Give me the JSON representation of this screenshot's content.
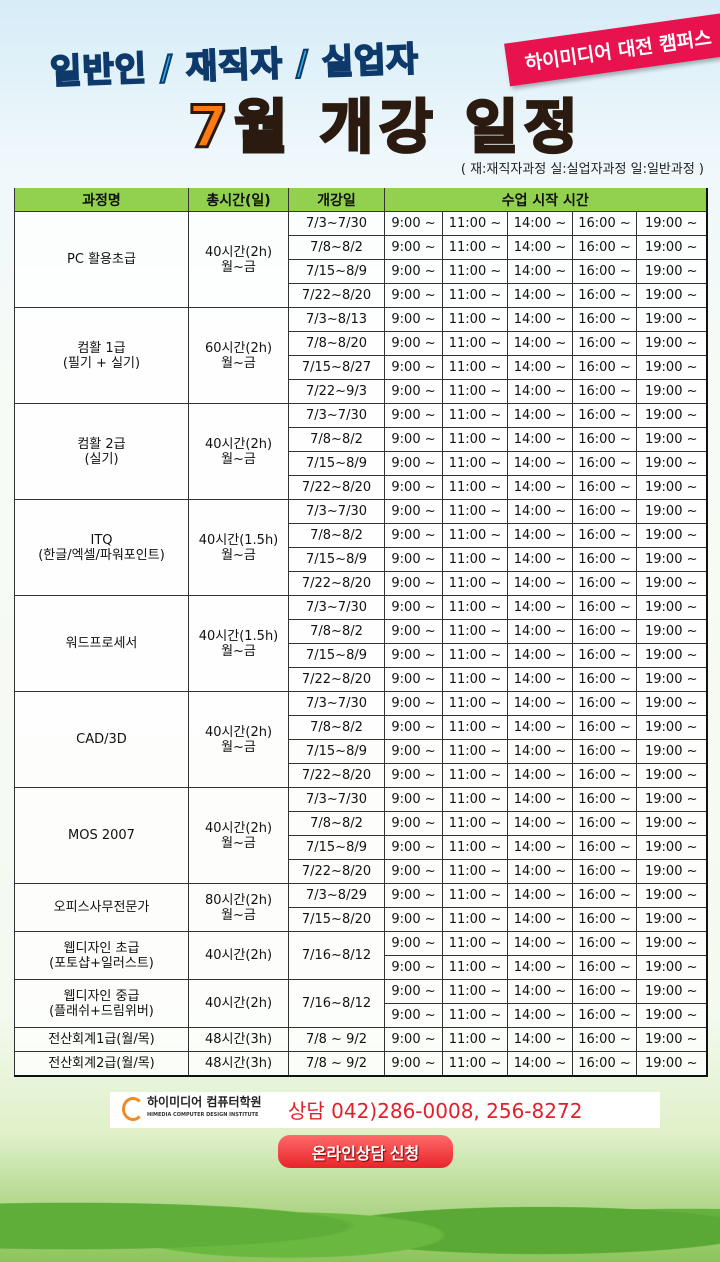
{
  "header": {
    "subtitle": "일반인 / 재직자 / 실업자",
    "title": "7월 개강 일정",
    "ribbon": "하이미디어 대전 캠퍼스",
    "legend": "( 재:재직자과정  실:실업자과정  일:일반과정 )"
  },
  "table": {
    "headers": [
      "과정명",
      "총시간(일)",
      "개강일",
      "수업 시작 시간"
    ],
    "times": [
      "9:00 ~",
      "11:00 ~",
      "14:00 ~",
      "16:00 ~",
      "19:00 ~"
    ],
    "courses": [
      {
        "name": [
          "PC 활용초급"
        ],
        "hours": [
          "40시간(2h)",
          "월~금"
        ],
        "sessions": [
          {
            "date": "7/3~7/30",
            "rows": 1
          },
          {
            "date": "7/8~8/2",
            "rows": 1
          },
          {
            "date": "7/15~8/9",
            "rows": 1
          },
          {
            "date": "7/22~8/20",
            "rows": 1
          }
        ]
      },
      {
        "name": [
          "컴활 1급",
          "(필기 + 실기)"
        ],
        "hours": [
          "60시간(2h)",
          "월~금"
        ],
        "sessions": [
          {
            "date": "7/3~8/13",
            "rows": 1
          },
          {
            "date": "7/8~8/20",
            "rows": 1
          },
          {
            "date": "7/15~8/27",
            "rows": 1
          },
          {
            "date": "7/22~9/3",
            "rows": 1
          }
        ]
      },
      {
        "name": [
          "컴활 2급",
          "(실기)"
        ],
        "hours": [
          "40시간(2h)",
          "월~금"
        ],
        "sessions": [
          {
            "date": "7/3~7/30",
            "rows": 1
          },
          {
            "date": "7/8~8/2",
            "rows": 1
          },
          {
            "date": "7/15~8/9",
            "rows": 1
          },
          {
            "date": "7/22~8/20",
            "rows": 1
          }
        ]
      },
      {
        "name": [
          "ITQ",
          "(한글/엑셀/파워포인트)"
        ],
        "hours": [
          "40시간(1.5h)",
          "월~금"
        ],
        "sessions": [
          {
            "date": "7/3~7/30",
            "rows": 1
          },
          {
            "date": "7/8~8/2",
            "rows": 1
          },
          {
            "date": "7/15~8/9",
            "rows": 1
          },
          {
            "date": "7/22~8/20",
            "rows": 1
          }
        ]
      },
      {
        "name": [
          "워드프로세서"
        ],
        "hours": [
          "40시간(1.5h)",
          "월~금"
        ],
        "sessions": [
          {
            "date": "7/3~7/30",
            "rows": 1
          },
          {
            "date": "7/8~8/2",
            "rows": 1
          },
          {
            "date": "7/15~8/9",
            "rows": 1
          },
          {
            "date": "7/22~8/20",
            "rows": 1
          }
        ]
      },
      {
        "name": [
          "CAD/3D"
        ],
        "hours": [
          "40시간(2h)",
          "월~금"
        ],
        "sessions": [
          {
            "date": "7/3~7/30",
            "rows": 1
          },
          {
            "date": "7/8~8/2",
            "rows": 1
          },
          {
            "date": "7/15~8/9",
            "rows": 1
          },
          {
            "date": "7/22~8/20",
            "rows": 1
          }
        ]
      },
      {
        "name": [
          "MOS 2007"
        ],
        "hours": [
          "40시간(2h)",
          "월~금"
        ],
        "sessions": [
          {
            "date": "7/3~7/30",
            "rows": 1
          },
          {
            "date": "7/8~8/2",
            "rows": 1
          },
          {
            "date": "7/15~8/9",
            "rows": 1
          },
          {
            "date": "7/22~8/20",
            "rows": 1
          }
        ]
      },
      {
        "name": [
          "오피스사무전문가"
        ],
        "hours": [
          "80시간(2h)",
          "월~금"
        ],
        "sessions": [
          {
            "date": "7/3~8/29",
            "rows": 1
          },
          {
            "date": "7/15~8/20",
            "rows": 1
          }
        ]
      },
      {
        "name": [
          "웹디자인 초급",
          "(포토샵+일러스트)"
        ],
        "hours": [
          "40시간(2h)"
        ],
        "sessions": [
          {
            "date": "7/16~8/12",
            "rows": 2
          }
        ]
      },
      {
        "name": [
          "웹디자인 중급",
          "(플래쉬+드림위버)"
        ],
        "hours": [
          "40시간(2h)"
        ],
        "sessions": [
          {
            "date": "7/16~8/12",
            "rows": 2
          }
        ]
      },
      {
        "name": [
          "전산회계1급(월/목)"
        ],
        "hours": [
          "48시간(3h)"
        ],
        "sessions": [
          {
            "date": "7/8 ~ 9/2",
            "rows": 1
          }
        ]
      },
      {
        "name": [
          "전산회계2급(월/목)"
        ],
        "hours": [
          "48시간(3h)"
        ],
        "sessions": [
          {
            "date": "7/8 ~ 9/2",
            "rows": 1
          }
        ]
      }
    ]
  },
  "footer": {
    "logo_name": "하이미디어 컴퓨터학원",
    "logo_sub": "HIMEDIA COMPUTER DESIGN INSTITUTE",
    "phone": "상담  042)286-0008,  256-8272",
    "cta": "온라인상담 신청"
  }
}
